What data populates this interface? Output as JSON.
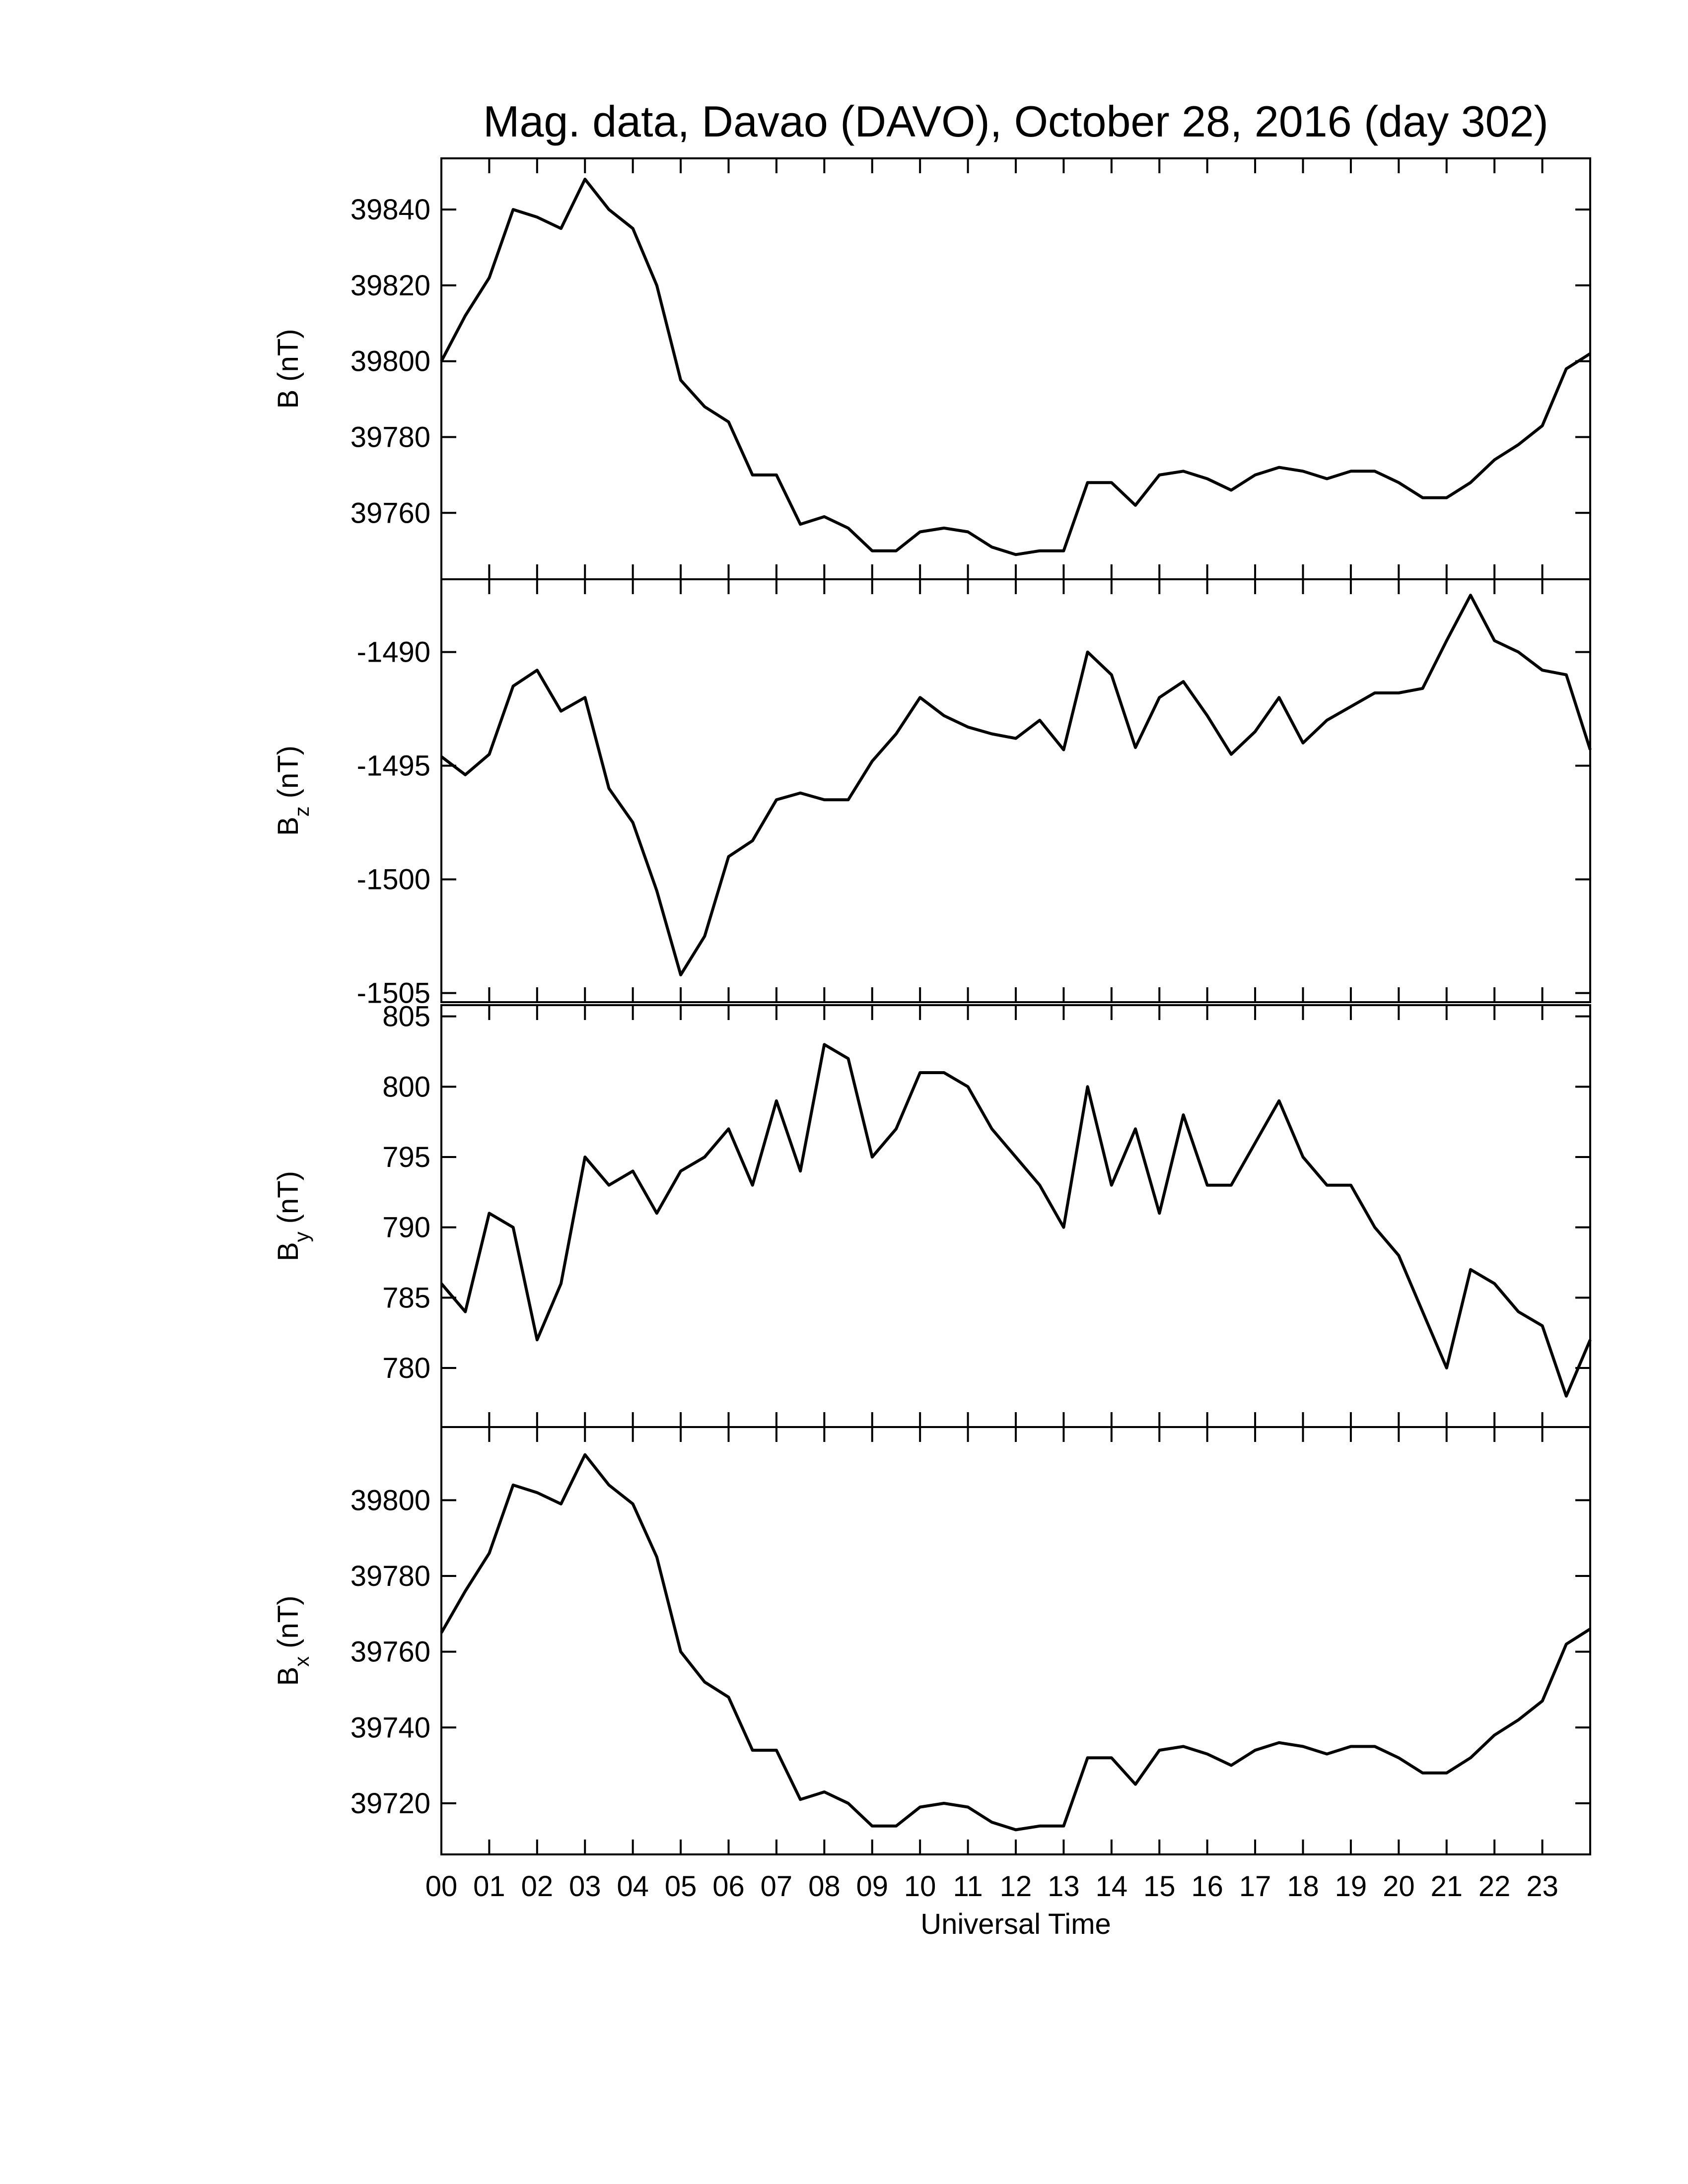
{
  "chart_data": [
    {
      "type": "line",
      "title": "Mag. data, Davao (DAVO), October 28, 2016 (day 302)",
      "ylabel": {
        "symbol": "B",
        "unit": "(nT)"
      },
      "color": "#000000",
      "x": [
        0,
        0.5,
        1,
        1.5,
        2,
        2.5,
        3,
        3.5,
        4,
        4.5,
        5,
        5.5,
        6,
        6.5,
        7,
        7.5,
        8,
        8.5,
        9,
        9.5,
        10,
        10.5,
        11,
        11.5,
        12,
        12.5,
        13,
        13.5,
        14,
        14.5,
        15,
        15.5,
        16,
        16.5,
        17,
        17.5,
        18,
        18.5,
        19,
        19.5,
        20,
        20.5,
        21,
        21.5,
        22,
        22.5,
        23,
        23.5,
        24
      ],
      "values": [
        39800,
        39812,
        39822,
        39840,
        39838,
        39835,
        39848,
        39840,
        39835,
        39820,
        39795,
        39788,
        39784,
        39770,
        39770,
        39757,
        39759,
        39756,
        39750,
        39750,
        39755,
        39756,
        39755,
        39751,
        39749,
        39750,
        39750,
        39768,
        39768,
        39762,
        39770,
        39771,
        39769,
        39766,
        39770,
        39772,
        39771,
        39769,
        39771,
        39771,
        39768,
        39764,
        39764,
        39768,
        39774,
        39778,
        39783,
        39798,
        39802
      ],
      "xlim": [
        0,
        24
      ],
      "xticks": [
        0,
        1,
        2,
        3,
        4,
        5,
        6,
        7,
        8,
        9,
        10,
        11,
        12,
        13,
        14,
        15,
        16,
        17,
        18,
        19,
        20,
        21,
        22,
        23
      ],
      "ylim": [
        39742.5,
        39853.5
      ],
      "yticks": [
        39760,
        39780,
        39800,
        39820,
        39840
      ]
    },
    {
      "type": "line",
      "ylabel": {
        "symbol": "B",
        "subscript": "z",
        "unit": "(nT)"
      },
      "color": "#000000",
      "x": [
        0,
        0.5,
        1,
        1.5,
        2,
        2.5,
        3,
        3.5,
        4,
        4.5,
        5,
        5.5,
        6,
        6.5,
        7,
        7.5,
        8,
        8.5,
        9,
        9.5,
        10,
        10.5,
        11,
        11.5,
        12,
        12.5,
        13,
        13.5,
        14,
        14.5,
        15,
        15.5,
        16,
        16.5,
        17,
        17.5,
        18,
        18.5,
        19,
        19.5,
        20,
        20.5,
        21,
        21.5,
        22,
        22.5,
        23,
        23.5,
        24
      ],
      "values": [
        -1494.6,
        -1495.4,
        -1494.5,
        -1491.5,
        -1490.8,
        -1492.6,
        -1492.0,
        -1496.0,
        -1497.5,
        -1500.5,
        -1504.2,
        -1502.5,
        -1499.0,
        -1498.3,
        -1496.5,
        -1496.2,
        -1496.5,
        -1496.5,
        -1494.8,
        -1493.6,
        -1492.0,
        -1492.8,
        -1493.3,
        -1493.6,
        -1493.8,
        -1493.0,
        -1494.3,
        -1490.0,
        -1491.0,
        -1494.2,
        -1492.0,
        -1491.3,
        -1492.8,
        -1494.5,
        -1493.5,
        -1492.0,
        -1494.0,
        -1493.0,
        -1492.4,
        -1491.8,
        -1491.8,
        -1491.6,
        -1489.5,
        -1487.5,
        -1489.5,
        -1490.0,
        -1490.8,
        -1491.0,
        -1494.3
      ],
      "xlim": [
        0,
        24
      ],
      "xticks": [
        0,
        1,
        2,
        3,
        4,
        5,
        6,
        7,
        8,
        9,
        10,
        11,
        12,
        13,
        14,
        15,
        16,
        17,
        18,
        19,
        20,
        21,
        22,
        23
      ],
      "ylim": [
        -1505.4,
        -1486.8
      ],
      "yticks": [
        -1505,
        -1500,
        -1495,
        -1490
      ]
    },
    {
      "type": "line",
      "ylabel": {
        "symbol": "B",
        "subscript": "y",
        "unit": "(nT)"
      },
      "color": "#000000",
      "x": [
        0,
        0.5,
        1,
        1.5,
        2,
        2.5,
        3,
        3.5,
        4,
        4.5,
        5,
        5.5,
        6,
        6.5,
        7,
        7.5,
        8,
        8.5,
        9,
        9.5,
        10,
        10.5,
        11,
        11.5,
        12,
        12.5,
        13,
        13.5,
        14,
        14.5,
        15,
        15.5,
        16,
        16.5,
        17,
        17.5,
        18,
        18.5,
        19,
        19.5,
        20,
        20.5,
        21,
        21.5,
        22,
        22.5,
        23,
        23.5,
        24
      ],
      "values": [
        786,
        784,
        791,
        790,
        782,
        786,
        795,
        793,
        794,
        791,
        794,
        795,
        797,
        793,
        799,
        794,
        803,
        802,
        795,
        797,
        801,
        801,
        800,
        797,
        795,
        793,
        790,
        800,
        793,
        797,
        791,
        798,
        793,
        793,
        796,
        799,
        795,
        793,
        793,
        790,
        788,
        784,
        780,
        787,
        786,
        784,
        783,
        778,
        782
      ],
      "xlim": [
        0,
        24
      ],
      "xticks": [
        0,
        1,
        2,
        3,
        4,
        5,
        6,
        7,
        8,
        9,
        10,
        11,
        12,
        13,
        14,
        15,
        16,
        17,
        18,
        19,
        20,
        21,
        22,
        23
      ],
      "ylim": [
        775.8,
        805.8
      ],
      "yticks": [
        780,
        785,
        790,
        795,
        800,
        805
      ]
    },
    {
      "type": "line",
      "ylabel": {
        "symbol": "B",
        "subscript": "x",
        "unit": "(nT)"
      },
      "xlabel": "Universal Time",
      "color": "#000000",
      "x": [
        0,
        0.5,
        1,
        1.5,
        2,
        2.5,
        3,
        3.5,
        4,
        4.5,
        5,
        5.5,
        6,
        6.5,
        7,
        7.5,
        8,
        8.5,
        9,
        9.5,
        10,
        10.5,
        11,
        11.5,
        12,
        12.5,
        13,
        13.5,
        14,
        14.5,
        15,
        15.5,
        16,
        16.5,
        17,
        17.5,
        18,
        18.5,
        19,
        19.5,
        20,
        20.5,
        21,
        21.5,
        22,
        22.5,
        23,
        23.5,
        24
      ],
      "values": [
        39765,
        39776,
        39786,
        39804,
        39802,
        39799,
        39812,
        39804,
        39799,
        39785,
        39760,
        39752,
        39748,
        39734,
        39734,
        39721,
        39723,
        39720,
        39714,
        39714,
        39719,
        39720,
        39719,
        39715,
        39713,
        39714,
        39714,
        39732,
        39732,
        39725,
        39734,
        39735,
        39733,
        39730,
        39734,
        39736,
        39735,
        39733,
        39735,
        39735,
        39732,
        39728,
        39728,
        39732,
        39738,
        39742,
        39747,
        39762,
        39766
      ],
      "xlim": [
        0,
        24
      ],
      "xticks": [
        {
          "value": 0,
          "label": "00"
        },
        {
          "value": 1,
          "label": "01"
        },
        {
          "value": 2,
          "label": "02"
        },
        {
          "value": 3,
          "label": "03"
        },
        {
          "value": 4,
          "label": "04"
        },
        {
          "value": 5,
          "label": "05"
        },
        {
          "value": 6,
          "label": "06"
        },
        {
          "value": 7,
          "label": "07"
        },
        {
          "value": 8,
          "label": "08"
        },
        {
          "value": 9,
          "label": "09"
        },
        {
          "value": 10,
          "label": "10"
        },
        {
          "value": 11,
          "label": "11"
        },
        {
          "value": 12,
          "label": "12"
        },
        {
          "value": 13,
          "label": "13"
        },
        {
          "value": 14,
          "label": "14"
        },
        {
          "value": 15,
          "label": "15"
        },
        {
          "value": 16,
          "label": "16"
        },
        {
          "value": 17,
          "label": "17"
        },
        {
          "value": 18,
          "label": "18"
        },
        {
          "value": 19,
          "label": "19"
        },
        {
          "value": 20,
          "label": "20"
        },
        {
          "value": 21,
          "label": "21"
        },
        {
          "value": 22,
          "label": "22"
        },
        {
          "value": 23,
          "label": "23"
        }
      ],
      "ylim": [
        39706.5,
        39819.3
      ],
      "yticks": [
        39720,
        39740,
        39760,
        39780,
        39800
      ]
    }
  ]
}
